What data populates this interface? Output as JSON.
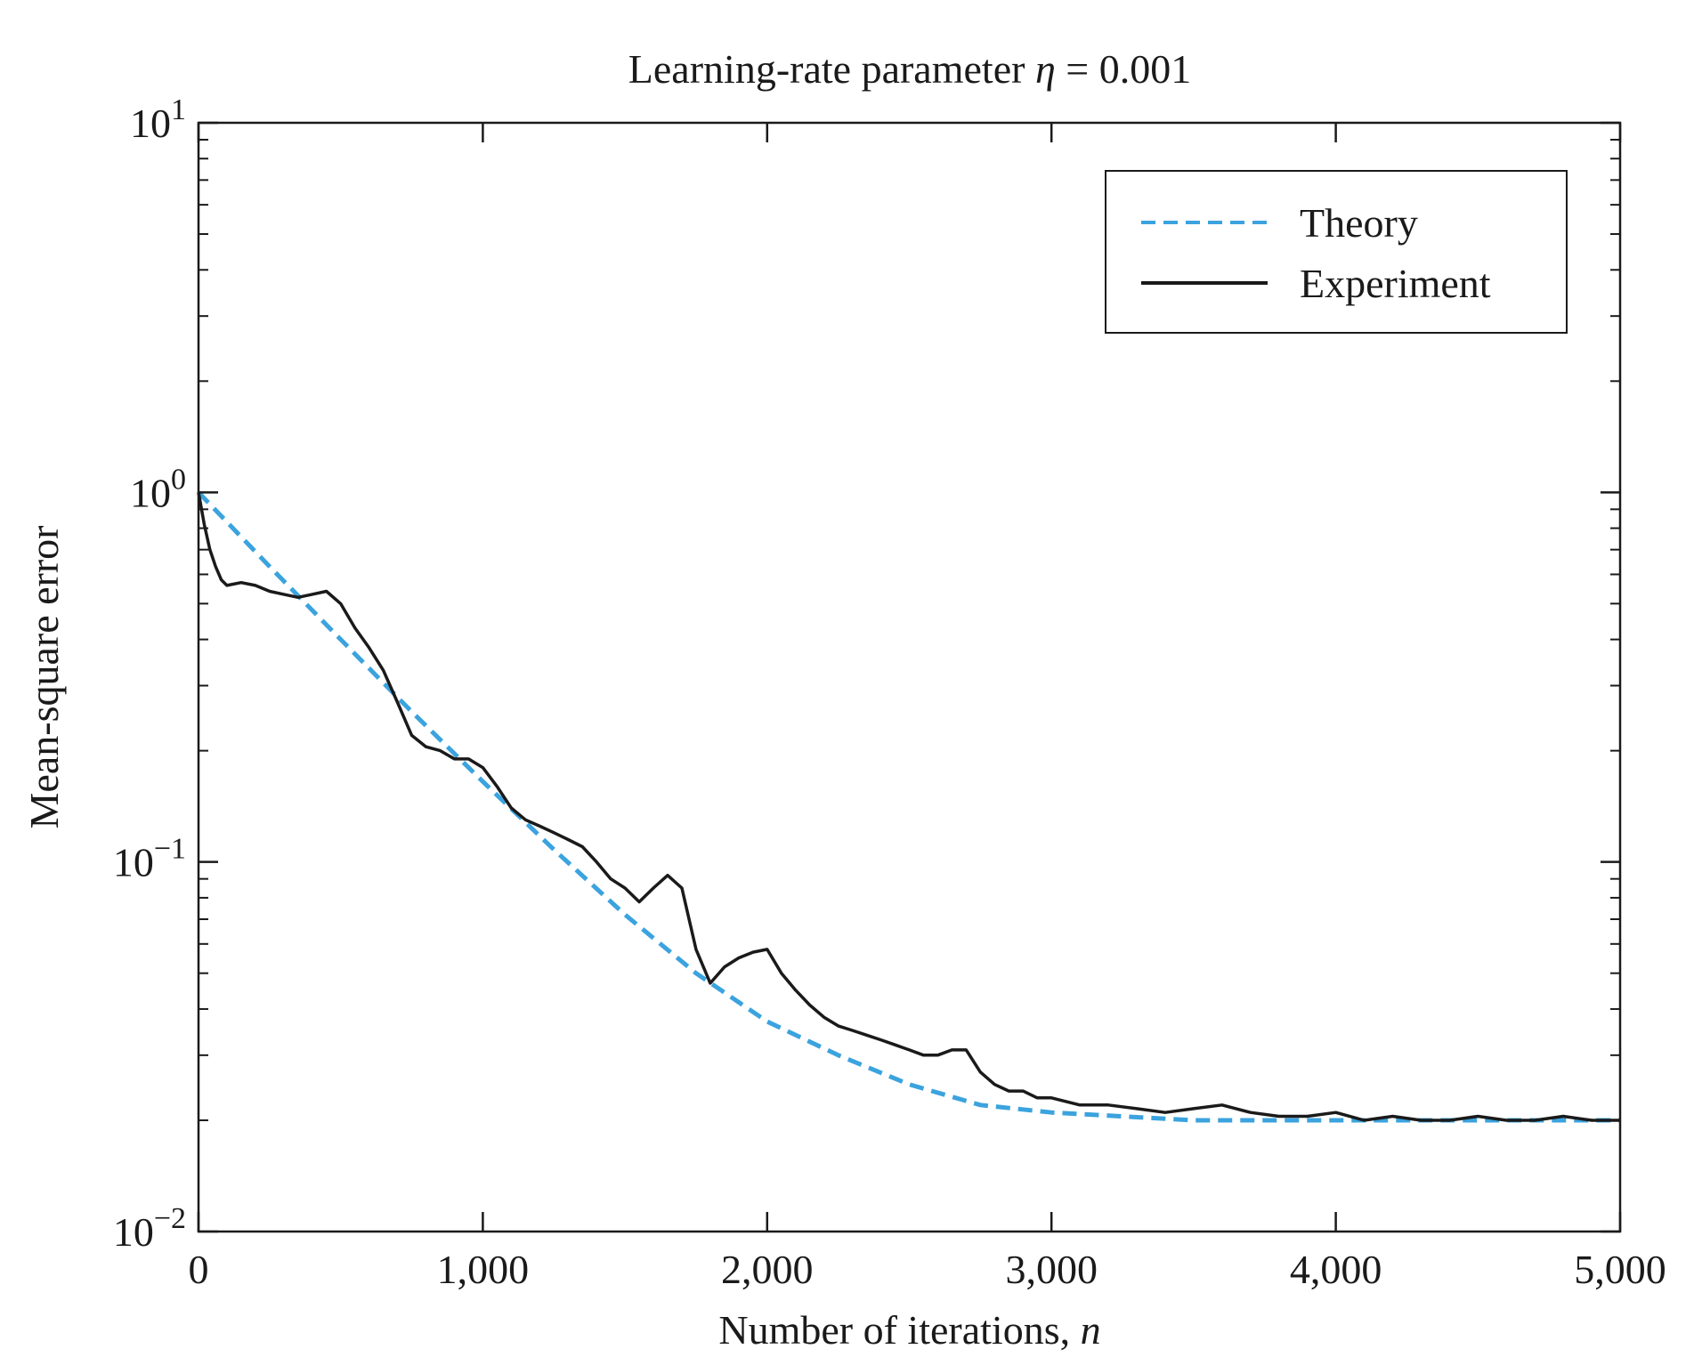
{
  "chart_data": {
    "type": "line",
    "title_prefix": "Learning-rate parameter ",
    "title_symbol": "η",
    "title_suffix": " = 0.001",
    "xlabel_prefix": "Number of iterations, ",
    "xlabel_symbol": "n",
    "ylabel": "Mean-square error",
    "xlim": [
      0,
      5000
    ],
    "ylim": [
      0.01,
      10
    ],
    "yscale": "log",
    "grid": false,
    "legend_position": "top-right",
    "x_ticks": [
      {
        "value": 0,
        "label": "0"
      },
      {
        "value": 1000,
        "label": "1,000"
      },
      {
        "value": 2000,
        "label": "2,000"
      },
      {
        "value": 3000,
        "label": "3,000"
      },
      {
        "value": 4000,
        "label": "4,000"
      },
      {
        "value": 5000,
        "label": "5,000"
      }
    ],
    "y_ticks": [
      {
        "value": 0.01,
        "base": "10",
        "exp": "−2"
      },
      {
        "value": 0.1,
        "base": "10",
        "exp": "−1"
      },
      {
        "value": 1,
        "base": "10",
        "exp": "0"
      },
      {
        "value": 10,
        "base": "10",
        "exp": "1"
      }
    ],
    "series": [
      {
        "name": "Theory",
        "color": "#3ba3de",
        "style": "dashed",
        "x": [
          0,
          250,
          500,
          750,
          1000,
          1250,
          1500,
          1750,
          2000,
          2250,
          2500,
          2750,
          3000,
          3500,
          4000,
          4500,
          5000
        ],
        "y": [
          1.0,
          0.63,
          0.4,
          0.255,
          0.165,
          0.108,
          0.072,
          0.05,
          0.037,
          0.03,
          0.025,
          0.022,
          0.021,
          0.02,
          0.02,
          0.02,
          0.02
        ]
      },
      {
        "name": "Experiment",
        "color": "#1a1a1a",
        "style": "solid",
        "x": [
          0,
          20,
          40,
          60,
          80,
          100,
          150,
          200,
          250,
          300,
          350,
          400,
          450,
          500,
          550,
          600,
          650,
          700,
          750,
          800,
          850,
          900,
          950,
          1000,
          1050,
          1100,
          1150,
          1200,
          1250,
          1300,
          1350,
          1400,
          1450,
          1500,
          1550,
          1600,
          1650,
          1700,
          1750,
          1800,
          1850,
          1900,
          1950,
          2000,
          2050,
          2100,
          2150,
          2200,
          2250,
          2300,
          2350,
          2400,
          2450,
          2500,
          2550,
          2600,
          2650,
          2700,
          2750,
          2800,
          2850,
          2900,
          2950,
          3000,
          3100,
          3200,
          3300,
          3400,
          3500,
          3600,
          3700,
          3800,
          3900,
          4000,
          4100,
          4200,
          4300,
          4400,
          4500,
          4600,
          4700,
          4800,
          4900,
          5000
        ],
        "y": [
          1.0,
          0.82,
          0.7,
          0.63,
          0.58,
          0.56,
          0.57,
          0.56,
          0.54,
          0.53,
          0.52,
          0.53,
          0.54,
          0.5,
          0.43,
          0.38,
          0.33,
          0.27,
          0.22,
          0.205,
          0.2,
          0.19,
          0.19,
          0.18,
          0.16,
          0.14,
          0.13,
          0.125,
          0.12,
          0.115,
          0.11,
          0.1,
          0.09,
          0.085,
          0.078,
          0.085,
          0.092,
          0.085,
          0.058,
          0.047,
          0.052,
          0.055,
          0.057,
          0.058,
          0.05,
          0.045,
          0.041,
          0.038,
          0.036,
          0.035,
          0.034,
          0.033,
          0.032,
          0.031,
          0.03,
          0.03,
          0.031,
          0.031,
          0.027,
          0.025,
          0.024,
          0.024,
          0.023,
          0.023,
          0.022,
          0.022,
          0.0215,
          0.021,
          0.0215,
          0.022,
          0.021,
          0.0205,
          0.0205,
          0.021,
          0.02,
          0.0205,
          0.02,
          0.02,
          0.0205,
          0.02,
          0.02,
          0.0205,
          0.02,
          0.02
        ]
      }
    ]
  }
}
